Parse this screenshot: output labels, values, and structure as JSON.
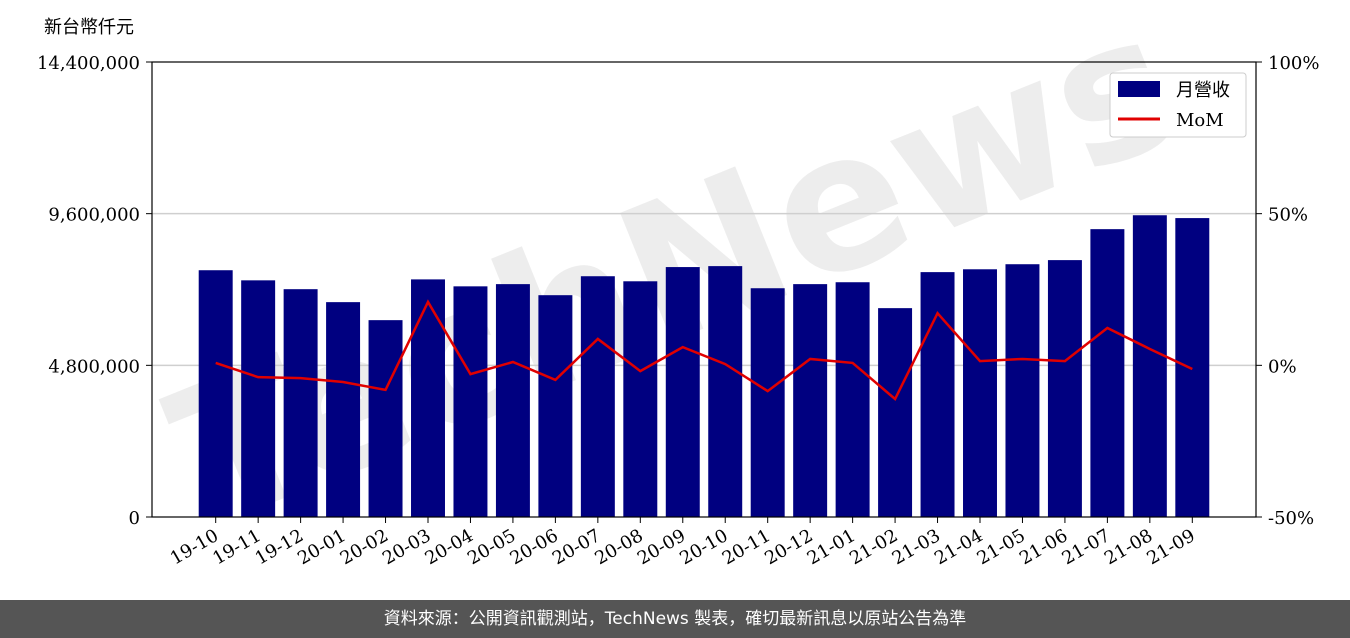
{
  "chart_data": {
    "type": "bar-line",
    "y_label": "新台幣仟元",
    "watermark": "TechNews",
    "categories": [
      "19-10",
      "19-11",
      "19-12",
      "20-01",
      "20-02",
      "20-03",
      "20-04",
      "20-05",
      "20-06",
      "20-07",
      "20-08",
      "20-09",
      "20-10",
      "20-11",
      "20-12",
      "21-01",
      "21-02",
      "21-03",
      "21-04",
      "21-05",
      "21-06",
      "21-07",
      "21-08",
      "21-09"
    ],
    "series": [
      {
        "name": "月營收",
        "type": "bar",
        "color": "#000080",
        "values": [
          7810000,
          7490000,
          7210000,
          6800000,
          6230000,
          7520000,
          7300000,
          7370000,
          7020000,
          7620000,
          7460000,
          7910000,
          7940000,
          7240000,
          7370000,
          7430000,
          6610000,
          7750000,
          7840000,
          8000000,
          8130000,
          9110000,
          9550000,
          9460000
        ]
      },
      {
        "name": "MoM",
        "type": "line",
        "axis": "y2",
        "color": "#e00000",
        "values": [
          0.8,
          -3.9,
          -4.2,
          -5.5,
          -8.1,
          20.9,
          -2.9,
          1.1,
          -4.8,
          8.7,
          -1.9,
          6.0,
          0.4,
          -8.5,
          2.1,
          0.8,
          -11.1,
          17.2,
          1.4,
          2.1,
          1.4,
          12.3,
          5.4,
          -1.2
        ]
      }
    ],
    "ylim": [
      0,
      14400000
    ],
    "yticks": [
      0,
      {
        "value": 4800000,
        "label": "4,800,000"
      },
      {
        "value": 9600000,
        "label": "9,600,000"
      },
      {
        "value": 14400000,
        "label": "14,400,000"
      }
    ],
    "y2lim": [
      -50,
      100
    ],
    "y2ticks": [
      {
        "value": -50,
        "label": "-50%"
      },
      {
        "value": 0,
        "label": "0%"
      },
      {
        "value": 50,
        "label": "50%"
      },
      {
        "value": 100,
        "label": "100%"
      }
    ],
    "grid": true,
    "legend": "upper right"
  },
  "footer": "資料來源：公開資訊觀測站，TechNews 製表，確切最新訊息以原站公告為準"
}
